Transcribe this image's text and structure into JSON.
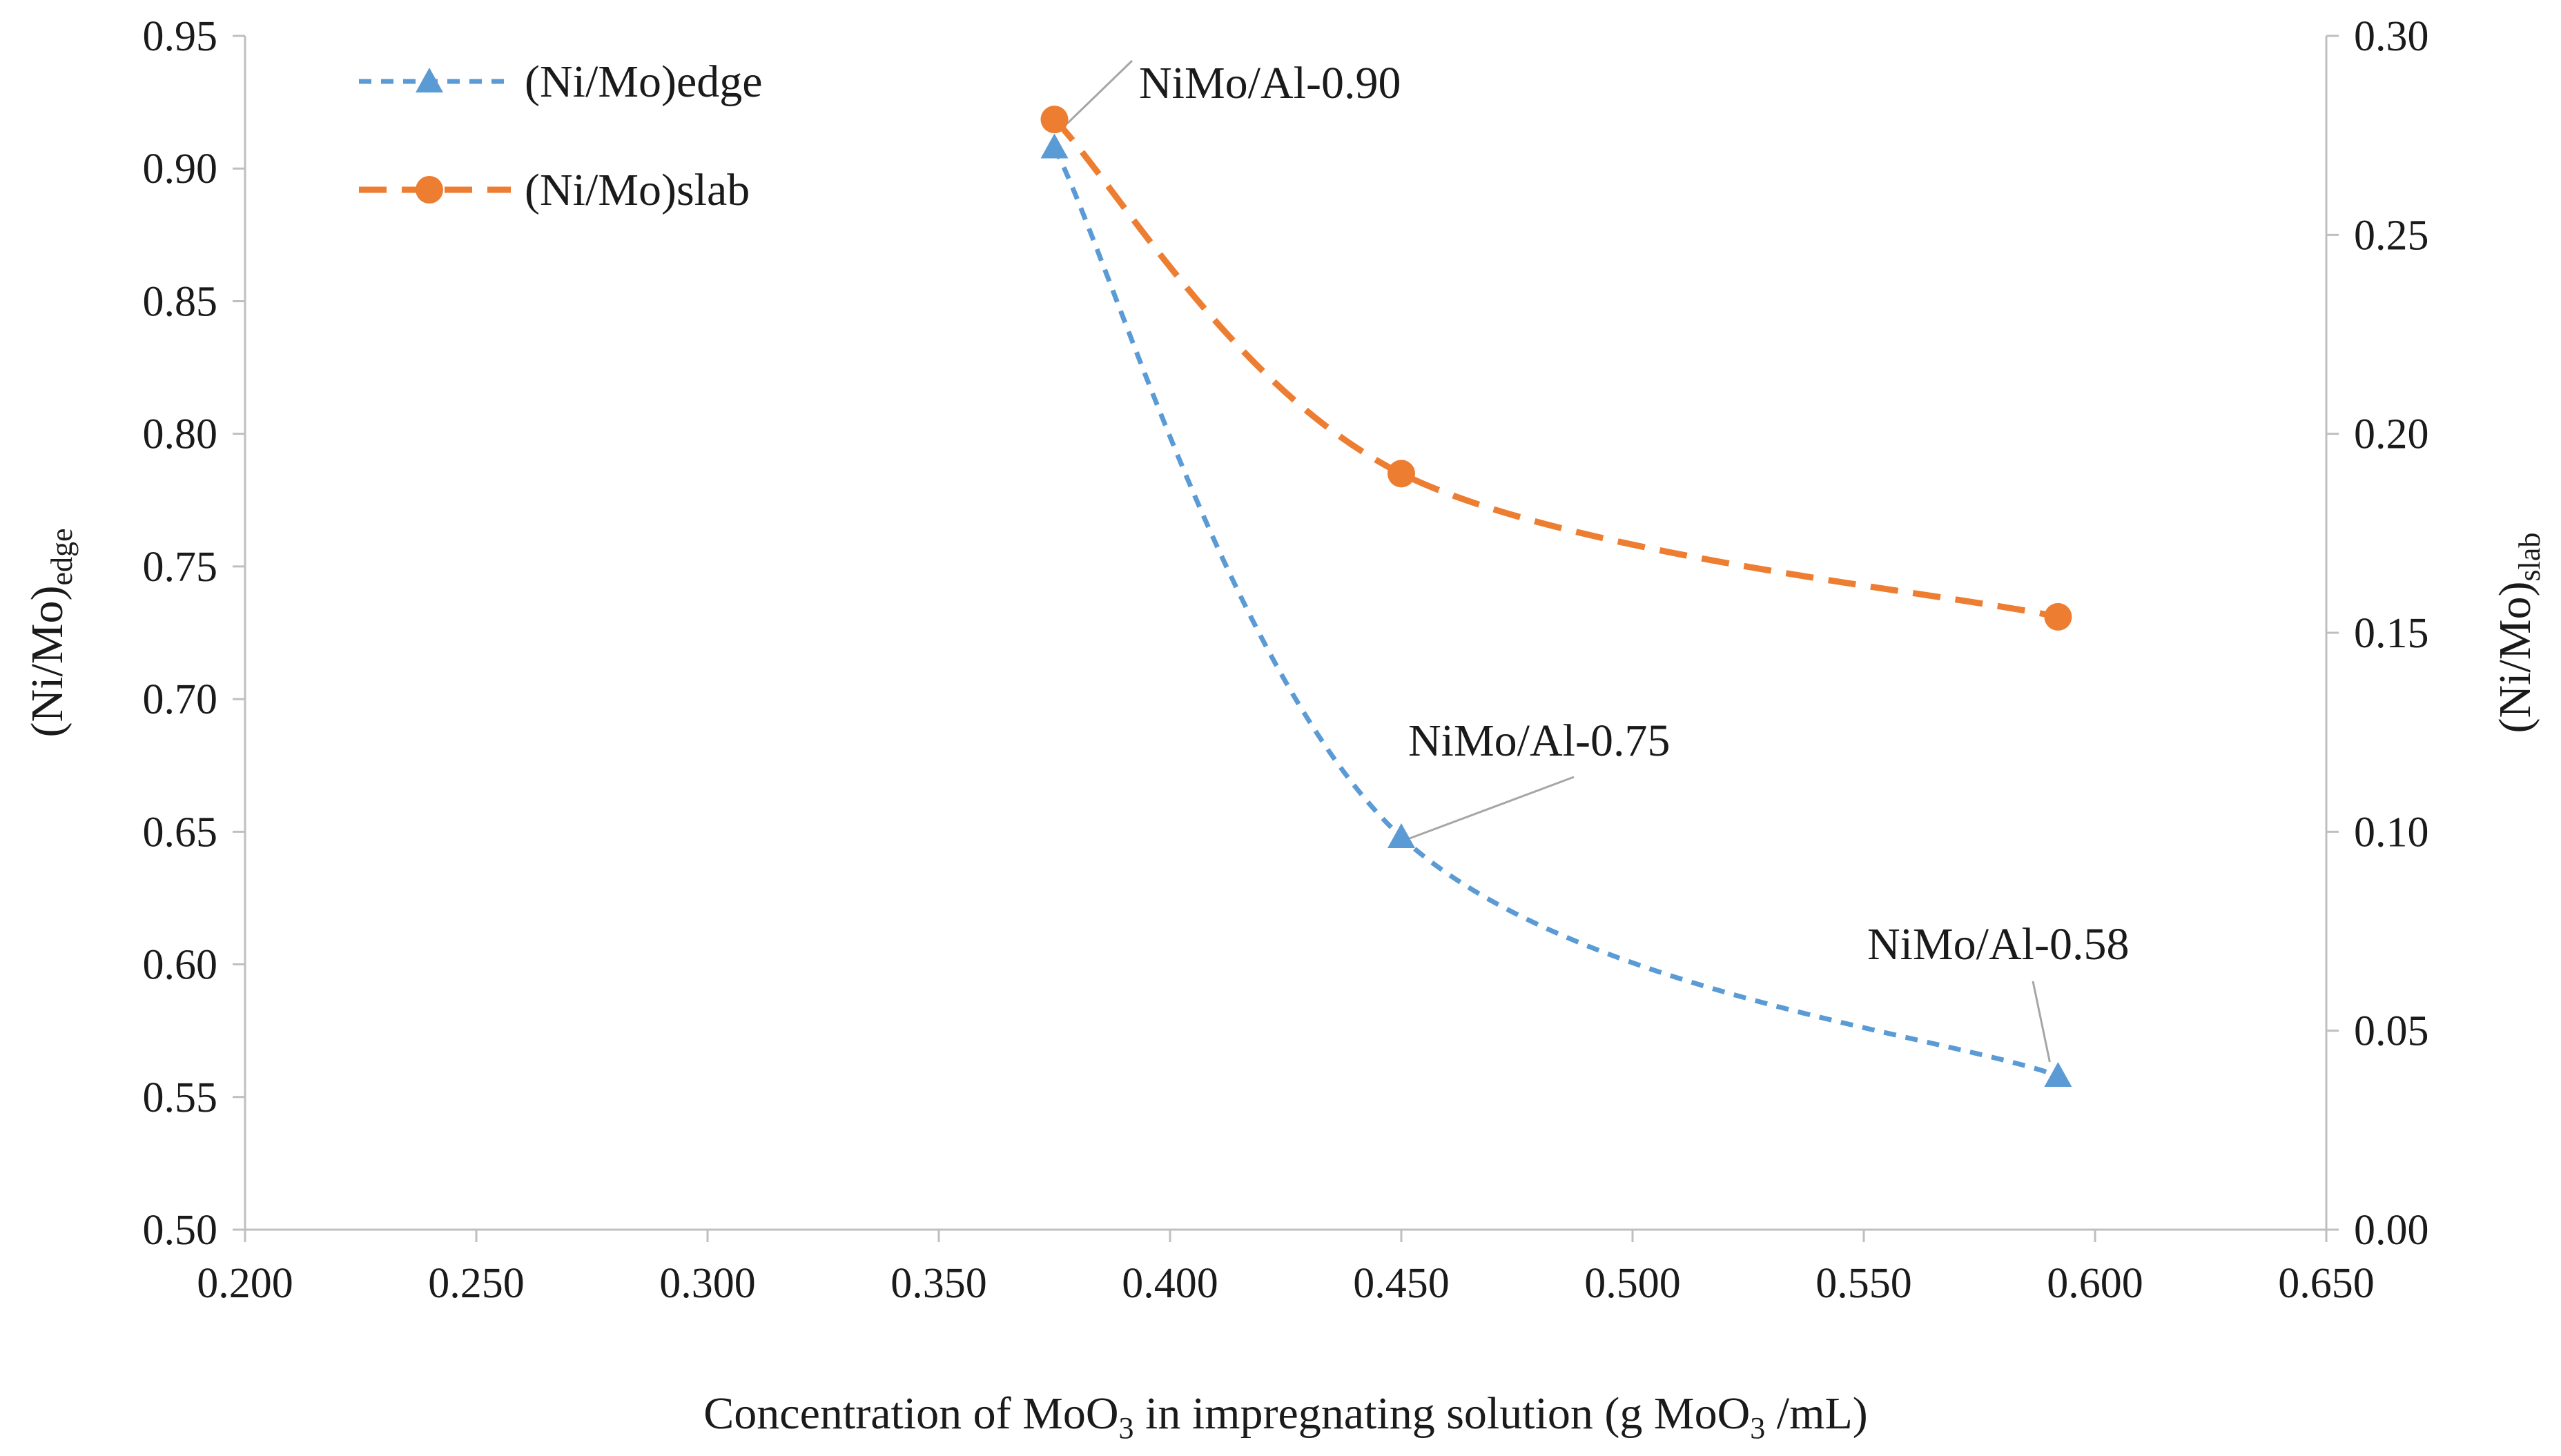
{
  "chart_data": {
    "type": "line",
    "xlabel": {
      "parts": [
        {
          "text": "Concentration of MoO",
          "sub": false
        },
        {
          "text": "3",
          "sub": true
        },
        {
          "text": " in impregnating solution (g MoO",
          "sub": false
        },
        {
          "text": "3",
          "sub": true
        },
        {
          "text": " /mL)",
          "sub": false
        }
      ]
    },
    "ylabel_left": {
      "main": "(Ni/Mo)",
      "sub": "edge"
    },
    "ylabel_right": {
      "main": "(Ni/Mo)",
      "sub": "slab"
    },
    "xlim": [
      0.2,
      0.65
    ],
    "ylim_left": [
      0.5,
      0.95
    ],
    "ylim_right": [
      0.0,
      0.3
    ],
    "xticks": [
      "0.200",
      "0.250",
      "0.300",
      "0.350",
      "0.400",
      "0.450",
      "0.500",
      "0.550",
      "0.600",
      "0.650"
    ],
    "yticks_left": [
      "0.50",
      "0.55",
      "0.60",
      "0.65",
      "0.70",
      "0.75",
      "0.80",
      "0.85",
      "0.90",
      "0.95"
    ],
    "yticks_right": [
      "0.00",
      "0.05",
      "0.10",
      "0.15",
      "0.20",
      "0.25",
      "0.30"
    ],
    "grid": false,
    "legend_position": "top-left",
    "series": [
      {
        "name": "(Ni/Mo)edge",
        "axis": "left",
        "marker": "triangle",
        "line_style": "short-dash",
        "color": "#5B9BD5",
        "x": [
          0.375,
          0.45,
          0.592
        ],
        "y": [
          0.908,
          0.648,
          0.558
        ]
      },
      {
        "name": "(Ni/Mo)slab",
        "axis": "right",
        "marker": "circle",
        "line_style": "long-dash",
        "color": "#ED7D31",
        "x": [
          0.375,
          0.45,
          0.592
        ],
        "y": [
          0.279,
          0.19,
          0.154
        ]
      }
    ],
    "annotations": [
      {
        "text": "NiMo/Al-0.90",
        "x": 0.375,
        "y": 0.908
      },
      {
        "text": "NiMo/Al-0.75",
        "x": 0.45,
        "y": 0.648
      },
      {
        "text": "NiMo/Al-0.58",
        "x": 0.592,
        "y": 0.558
      }
    ]
  }
}
